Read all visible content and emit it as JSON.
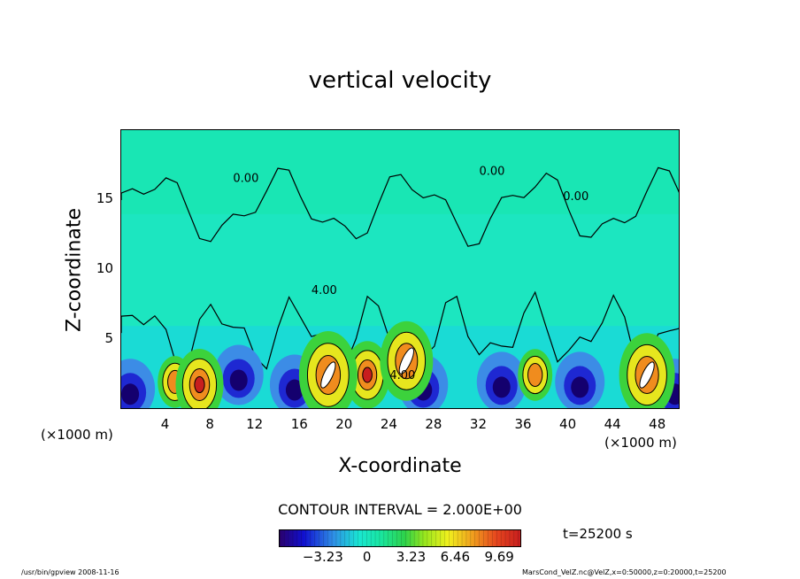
{
  "chart_data": {
    "type": "heatmap",
    "title": "vertical velocity",
    "xlabel": "X-coordinate",
    "ylabel": "Z-coordinate",
    "x_unit_label": "(×1000 m)",
    "x_unit_label_right": "(×1000 m)",
    "xlim": [
      0,
      50
    ],
    "ylim": [
      0,
      20
    ],
    "x_ticks": [
      "4",
      "8",
      "12",
      "16",
      "20",
      "24",
      "28",
      "32",
      "36",
      "40",
      "44",
      "48"
    ],
    "x_tick_values": [
      4,
      8,
      12,
      16,
      20,
      24,
      28,
      32,
      36,
      40,
      44,
      48
    ],
    "y_ticks": [
      "5",
      "10",
      "15"
    ],
    "y_tick_values": [
      5,
      10,
      15
    ],
    "contour_interval_text": "CONTOUR INTERVAL = 2.000E+00",
    "contour_labels": [
      "0.00",
      "0.00",
      "0.00",
      "4.00",
      "4.00"
    ],
    "colorbar": {
      "tick_labels": [
        "−3.23",
        "0",
        "3.23",
        "6.46",
        "9.69"
      ],
      "tick_values": [
        -3.23,
        0,
        3.23,
        6.46,
        9.69
      ],
      "range": [
        -6.46,
        11.3
      ]
    },
    "time_label": "t=25200 s",
    "updrafts": [
      {
        "x": 4.8,
        "z": 2.0,
        "w": 6.5
      },
      {
        "x": 7.0,
        "z": 1.8,
        "w": 9.0
      },
      {
        "x": 22.0,
        "z": 2.5,
        "w": 8.5
      },
      {
        "x": 37.0,
        "z": 2.5,
        "w": 6.5
      },
      {
        "x": 45.5,
        "z": 2.2,
        "w": 4.0
      },
      {
        "x": 18.5,
        "z": 2.5,
        "w": 11.0
      },
      {
        "x": 25.5,
        "z": 3.5,
        "w": 10.0
      },
      {
        "x": 47.0,
        "z": 2.5,
        "w": 10.5
      }
    ],
    "downdrafts": [
      {
        "x": 0.8,
        "z": 1.5,
        "w": -5.5
      },
      {
        "x": 10.5,
        "z": 2.5,
        "w": -5.0
      },
      {
        "x": 15.5,
        "z": 1.8,
        "w": -5.5
      },
      {
        "x": 27.0,
        "z": 1.8,
        "w": -4.5
      },
      {
        "x": 34.0,
        "z": 2.0,
        "w": -6.0
      },
      {
        "x": 41.0,
        "z": 2.0,
        "w": -5.0
      },
      {
        "x": 49.5,
        "z": 1.5,
        "w": -5.0
      }
    ]
  },
  "footer": {
    "left": "/usr/bin/gpview  2008-11-16",
    "right": "MarsCond_VelZ.nc@VelZ,x=0:50000,z=0:20000,t=25200"
  },
  "colors": {
    "background_field": "#19e6b8",
    "frame": "#000000"
  }
}
